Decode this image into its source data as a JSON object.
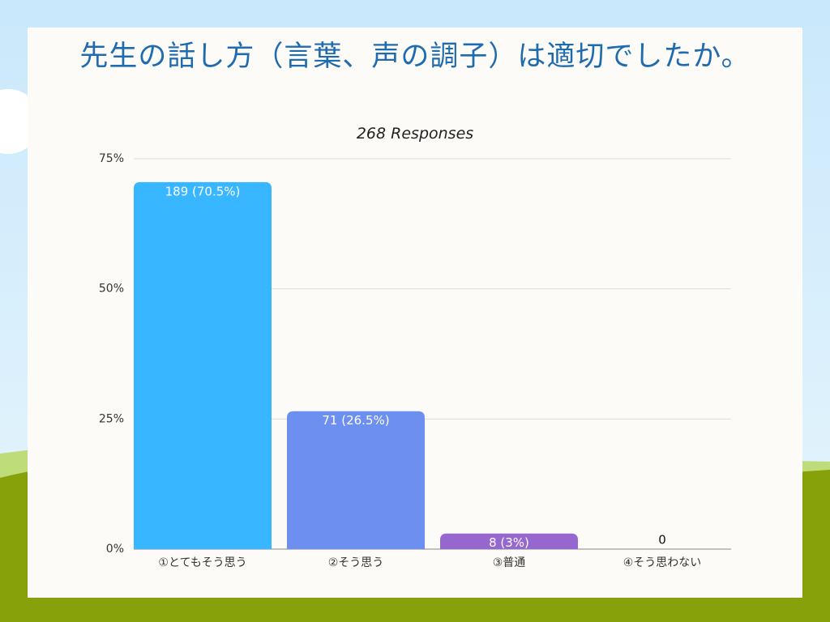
{
  "chart_data": {
    "type": "bar",
    "title": "先生の話し方（言葉、声の調子）は適切でしたか。",
    "subtitle": "268 Responses",
    "categories": [
      "①とてもそう思う",
      "②そう思う",
      "③普通",
      "④そう思わない"
    ],
    "values": [
      70.5,
      26.5,
      3,
      0
    ],
    "value_labels": [
      "189 (70.5%)",
      "71 (26.5%)",
      "8 (3%)",
      "0"
    ],
    "colors": [
      "#38b6ff",
      "#6d8ff0",
      "#9567cf",
      "#9567cf"
    ],
    "ylim": [
      0,
      75
    ],
    "yticks": [
      {
        "value": 0,
        "label": "0%"
      },
      {
        "value": 25,
        "label": "25%"
      },
      {
        "value": 50,
        "label": "50%"
      },
      {
        "value": 75,
        "label": "75%"
      }
    ],
    "grid": true
  }
}
